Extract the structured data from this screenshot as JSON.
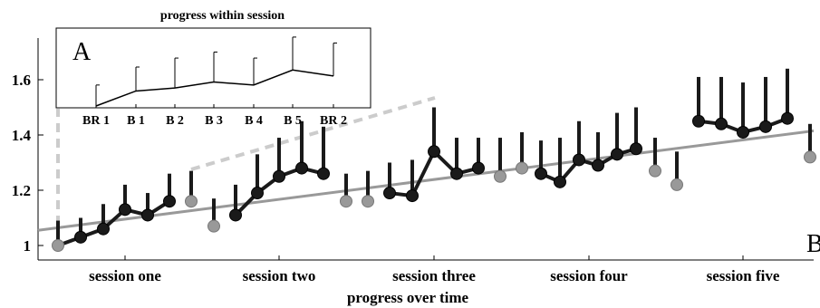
{
  "chart_data": [
    {
      "type": "line",
      "panel_label": "B",
      "xlabel": "progress over time",
      "ylabel": "",
      "ylim": [
        0.95,
        1.72
      ],
      "y_ticks": [
        "1",
        "1.2",
        "1.4",
        "1.6"
      ],
      "y_tick_values": [
        1.0,
        1.2,
        1.4,
        1.6
      ],
      "sessions": [
        {
          "label": "session one",
          "points": [
            {
              "y": 1.0,
              "err": 1.09,
              "kind": "baseline"
            },
            {
              "y": 1.03,
              "err": 1.1,
              "kind": "block"
            },
            {
              "y": 1.06,
              "err": 1.15,
              "kind": "block"
            },
            {
              "y": 1.13,
              "err": 1.22,
              "kind": "block"
            },
            {
              "y": 1.11,
              "err": 1.19,
              "kind": "block"
            },
            {
              "y": 1.16,
              "err": 1.26,
              "kind": "block"
            },
            {
              "y": 1.16,
              "err": 1.27,
              "kind": "baseline"
            }
          ]
        },
        {
          "label": "session two",
          "points": [
            {
              "y": 1.07,
              "err": 1.17,
              "kind": "baseline"
            },
            {
              "y": 1.11,
              "err": 1.22,
              "kind": "block"
            },
            {
              "y": 1.19,
              "err": 1.33,
              "kind": "block"
            },
            {
              "y": 1.25,
              "err": 1.39,
              "kind": "block"
            },
            {
              "y": 1.28,
              "err": 1.45,
              "kind": "block"
            },
            {
              "y": 1.26,
              "err": 1.43,
              "kind": "block"
            },
            {
              "y": 1.16,
              "err": 1.26,
              "kind": "baseline"
            }
          ]
        },
        {
          "label": "session three",
          "points": [
            {
              "y": 1.16,
              "err": 1.27,
              "kind": "baseline"
            },
            {
              "y": 1.19,
              "err": 1.3,
              "kind": "block"
            },
            {
              "y": 1.18,
              "err": 1.31,
              "kind": "block"
            },
            {
              "y": 1.34,
              "err": 1.5,
              "kind": "block"
            },
            {
              "y": 1.26,
              "err": 1.39,
              "kind": "block"
            },
            {
              "y": 1.28,
              "err": 1.39,
              "kind": "block"
            },
            {
              "y": 1.25,
              "err": 1.39,
              "kind": "baseline"
            }
          ]
        },
        {
          "label": "session four",
          "points": [
            {
              "y": 1.28,
              "err": 1.41,
              "kind": "baseline"
            },
            {
              "y": 1.26,
              "err": 1.38,
              "kind": "block"
            },
            {
              "y": 1.23,
              "err": 1.39,
              "kind": "block"
            },
            {
              "y": 1.31,
              "err": 1.45,
              "kind": "block"
            },
            {
              "y": 1.29,
              "err": 1.41,
              "kind": "block"
            },
            {
              "y": 1.33,
              "err": 1.48,
              "kind": "block"
            },
            {
              "y": 1.35,
              "err": 1.5,
              "kind": "block"
            },
            {
              "y": 1.27,
              "err": 1.39,
              "kind": "baseline"
            }
          ]
        },
        {
          "label": "session five",
          "points": [
            {
              "y": 1.22,
              "err": 1.34,
              "kind": "baseline"
            },
            {
              "y": 1.45,
              "err": 1.61,
              "kind": "block"
            },
            {
              "y": 1.44,
              "err": 1.61,
              "kind": "block"
            },
            {
              "y": 1.41,
              "err": 1.59,
              "kind": "block"
            },
            {
              "y": 1.43,
              "err": 1.61,
              "kind": "block"
            },
            {
              "y": 1.46,
              "err": 1.64,
              "kind": "block"
            },
            {
              "y": 1.32,
              "err": 1.44,
              "kind": "baseline"
            }
          ]
        }
      ],
      "trend_line": {
        "y_start": 1.055,
        "y_end": 1.415
      },
      "colors": {
        "block": "#1a1a1a",
        "baseline": "#999999",
        "trend": "#999999"
      }
    },
    {
      "type": "line",
      "panel_label": "A",
      "title": "progress within session",
      "categories": [
        "BR 1",
        "B 1",
        "B 2",
        "B 3",
        "B 4",
        "B 5",
        "BR 2"
      ],
      "values": [
        1.0,
        1.05,
        1.06,
        1.08,
        1.07,
        1.12,
        1.1
      ],
      "err_tops": [
        1.07,
        1.13,
        1.16,
        1.18,
        1.16,
        1.23,
        1.21
      ],
      "ylim": [
        1.0,
        1.26
      ]
    }
  ]
}
